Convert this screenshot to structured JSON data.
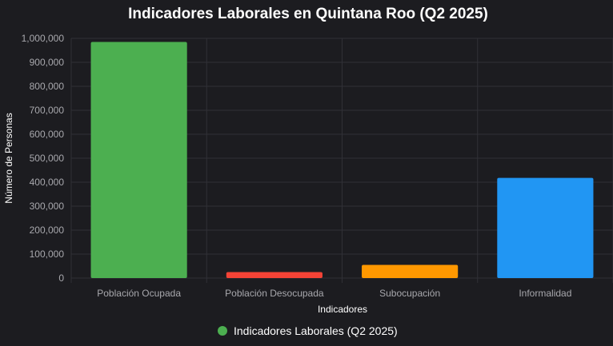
{
  "chart_data": {
    "type": "bar",
    "title": "Indicadores Laborales en Quintana Roo (Q2 2025)",
    "xlabel": "Indicadores",
    "ylabel": "Número de Personas",
    "categories": [
      "Población Ocupada",
      "Población Desocupada",
      "Subocupación",
      "Informalidad"
    ],
    "series": [
      {
        "name": "Indicadores Laborales (Q2 2025)",
        "values": [
          985000,
          25000,
          55000,
          418000
        ]
      }
    ],
    "colors": [
      "#4caf50",
      "#f44336",
      "#ff9800",
      "#2196f3"
    ],
    "legend_color": "#4caf50",
    "ylim": [
      0,
      1000000
    ],
    "yticks": [
      "0",
      "100,000",
      "200,000",
      "300,000",
      "400,000",
      "500,000",
      "600,000",
      "700,000",
      "800,000",
      "900,000",
      "1,000,000"
    ],
    "grid": true,
    "legend_position": "bottom"
  }
}
